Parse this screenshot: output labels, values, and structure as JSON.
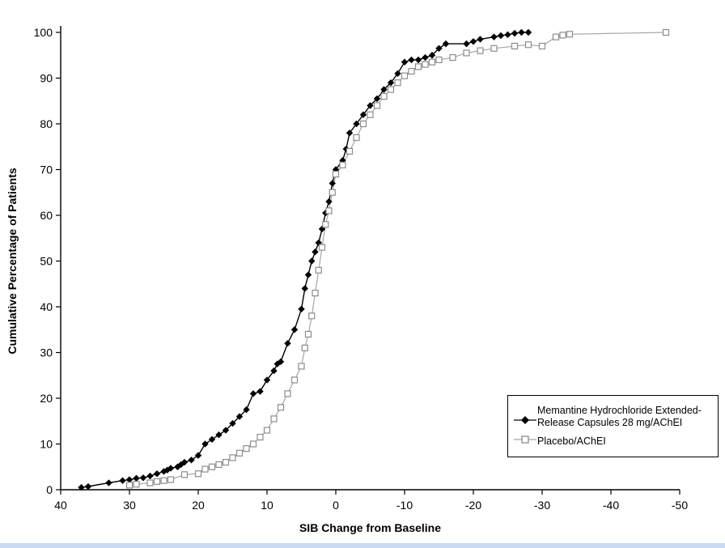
{
  "chart_data": {
    "type": "line",
    "title": "",
    "xlabel": "SIB Change from Baseline",
    "ylabel": "Cumulative Percentage of Patients",
    "xlim": [
      40,
      -50
    ],
    "ylim": [
      0,
      100
    ],
    "x_axis_reversed": true,
    "grid": false,
    "xticks": [
      40,
      30,
      20,
      10,
      0,
      -10,
      -20,
      -30,
      -40,
      -50
    ],
    "yticks": [
      0,
      10,
      20,
      30,
      40,
      50,
      60,
      70,
      80,
      90,
      100
    ],
    "series": [
      {
        "name": "Memantine Hydrochloride Extended-Release Capsules 28 mg/AChEI",
        "marker": "diamond",
        "line_color": "#000000",
        "marker_color": "#000000",
        "points": [
          [
            37,
            0.5
          ],
          [
            36,
            0.7
          ],
          [
            33,
            1.5
          ],
          [
            31,
            2.0
          ],
          [
            30,
            2.2
          ],
          [
            29,
            2.5
          ],
          [
            28,
            2.6
          ],
          [
            27,
            3.0
          ],
          [
            26,
            3.5
          ],
          [
            25,
            4.0
          ],
          [
            24.5,
            4.3
          ],
          [
            24,
            4.7
          ],
          [
            23,
            5.0
          ],
          [
            22.5,
            5.5
          ],
          [
            22,
            6.0
          ],
          [
            21,
            6.5
          ],
          [
            20,
            7.5
          ],
          [
            19,
            10.0
          ],
          [
            18,
            11.0
          ],
          [
            17,
            12.0
          ],
          [
            16,
            13.0
          ],
          [
            15,
            14.5
          ],
          [
            14,
            16.0
          ],
          [
            13,
            17.5
          ],
          [
            12,
            21.0
          ],
          [
            11,
            21.5
          ],
          [
            10,
            24.0
          ],
          [
            9,
            26.0
          ],
          [
            8.5,
            27.5
          ],
          [
            8,
            28.0
          ],
          [
            7,
            32.0
          ],
          [
            6,
            35.0
          ],
          [
            5,
            39.5
          ],
          [
            4.5,
            44.0
          ],
          [
            4,
            47.0
          ],
          [
            3.5,
            50.0
          ],
          [
            3,
            52.0
          ],
          [
            2.5,
            54.0
          ],
          [
            2,
            57.0
          ],
          [
            1.5,
            60.5
          ],
          [
            1,
            63.0
          ],
          [
            0.5,
            67.0
          ],
          [
            0,
            70.0
          ],
          [
            -1,
            72.0
          ],
          [
            -1.5,
            74.5
          ],
          [
            -2,
            78.0
          ],
          [
            -3,
            80.0
          ],
          [
            -4,
            82.0
          ],
          [
            -5,
            84.0
          ],
          [
            -6,
            85.5
          ],
          [
            -7,
            87.5
          ],
          [
            -8,
            89.0
          ],
          [
            -9,
            91.0
          ],
          [
            -10,
            93.5
          ],
          [
            -11,
            94.0
          ],
          [
            -12,
            94.0
          ],
          [
            -13,
            94.5
          ],
          [
            -14,
            95.0
          ],
          [
            -15,
            96.5
          ],
          [
            -16,
            97.5
          ],
          [
            -19,
            97.5
          ],
          [
            -20,
            98.0
          ],
          [
            -21,
            98.5
          ],
          [
            -23,
            99.0
          ],
          [
            -24,
            99.3
          ],
          [
            -25,
            99.5
          ],
          [
            -26,
            99.8
          ],
          [
            -27,
            100.0
          ],
          [
            -28,
            100.0
          ]
        ]
      },
      {
        "name": "Placebo/AChEI",
        "marker": "square",
        "line_color": "#a6a6a6",
        "marker_color": "#8c8c8c",
        "points": [
          [
            30,
            1.0
          ],
          [
            29,
            1.2
          ],
          [
            27,
            1.5
          ],
          [
            26,
            1.8
          ],
          [
            25,
            2.0
          ],
          [
            24,
            2.2
          ],
          [
            22,
            3.3
          ],
          [
            20,
            3.5
          ],
          [
            19,
            4.5
          ],
          [
            18,
            5.0
          ],
          [
            17,
            5.5
          ],
          [
            16,
            6.0
          ],
          [
            15,
            7.0
          ],
          [
            14,
            8.0
          ],
          [
            13,
            9.0
          ],
          [
            12,
            10.0
          ],
          [
            11,
            11.5
          ],
          [
            10,
            13.0
          ],
          [
            9,
            15.5
          ],
          [
            8,
            18.0
          ],
          [
            7,
            21.0
          ],
          [
            6,
            24.0
          ],
          [
            5,
            27.0
          ],
          [
            4.5,
            31.0
          ],
          [
            4,
            34.0
          ],
          [
            3.5,
            38.0
          ],
          [
            3,
            43.0
          ],
          [
            2.5,
            48.0
          ],
          [
            2,
            53.0
          ],
          [
            1.5,
            58.0
          ],
          [
            1,
            61.0
          ],
          [
            0.5,
            65.0
          ],
          [
            0,
            69.0
          ],
          [
            -1,
            71.0
          ],
          [
            -2,
            74.0
          ],
          [
            -3,
            77.0
          ],
          [
            -4,
            80.0
          ],
          [
            -5,
            82.0
          ],
          [
            -6,
            84.0
          ],
          [
            -7,
            86.0
          ],
          [
            -8,
            87.5
          ],
          [
            -9,
            89.0
          ],
          [
            -10,
            90.5
          ],
          [
            -11,
            91.5
          ],
          [
            -12,
            92.5
          ],
          [
            -13,
            93.0
          ],
          [
            -14,
            93.5
          ],
          [
            -15,
            94.0
          ],
          [
            -17,
            94.5
          ],
          [
            -19,
            95.5
          ],
          [
            -21,
            96.0
          ],
          [
            -23,
            96.5
          ],
          [
            -26,
            97.0
          ],
          [
            -28,
            97.3
          ],
          [
            -30,
            97.0
          ],
          [
            -32,
            99.0
          ],
          [
            -33,
            99.4
          ],
          [
            -34,
            99.6
          ],
          [
            -48,
            100.0
          ]
        ]
      }
    ],
    "legend_position": "lower right"
  },
  "legend": {
    "entries": [
      {
        "line1": "Memantine Hydrochloride Extended-",
        "line2": "Release Capsules 28 mg/AChEI"
      },
      {
        "line1": "Placebo/AChEI"
      }
    ]
  },
  "axes": {
    "xlabel": "SIB Change from Baseline",
    "ylabel": "Cumulative Percentage of Patients"
  }
}
